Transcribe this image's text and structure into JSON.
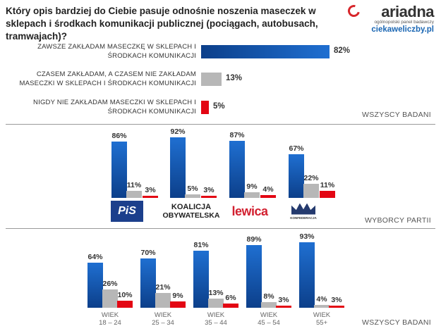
{
  "title": "Który opis bardziej do Ciebie pasuje odnośnie noszenia maseczek w sklepach i środkach komunikacji publicznej (pociągach, autobusach, tramwajach)?",
  "brand": {
    "name": "ariadna",
    "tagline": "ogólnopolski panel badawczy",
    "site": "ciekaweliczby.pl"
  },
  "colors": {
    "always": "#1659b5",
    "sometimes": "#b7b7b7",
    "never": "#e30613",
    "label": "#333333"
  },
  "chart_data": [
    {
      "type": "bar",
      "orientation": "horizontal",
      "group_label": "WSZYSCY BADANI",
      "categories": [
        [
          "ZAWSZE ZAKŁADAM MASECZKĘ W SKLEPACH I",
          "ŚRODKACH KOMUNIKACJI"
        ],
        [
          "CZASEM ZAKŁADAM, A CZASEM NIE ZAKŁADAM",
          "MASECZKI W SKLEPACH I ŚRODKACH KOMUNIKACJI"
        ],
        [
          "NIGDY NIE ZAKŁADAM MASECZKI W SKLEPACH I",
          "ŚRODKACH KOMUNIKACJI"
        ]
      ],
      "values": [
        82,
        13,
        5
      ],
      "labels": [
        "82%",
        "13%",
        "5%"
      ]
    },
    {
      "type": "bar",
      "orientation": "vertical",
      "group_label": "WYBORCY PARTII",
      "categories": [
        "PiS",
        "Koalicja Obywatelska",
        "Lewica",
        "Konfederacja"
      ],
      "logos": {
        "pis": "PiS",
        "ko": [
          "KOALICJA",
          "OBYWATELSKA"
        ],
        "lewica": "lewica",
        "konfederacja": "KONFEDERACJA"
      },
      "series": [
        {
          "values": [
            86,
            92,
            87,
            67
          ],
          "labels": [
            "86%",
            "92%",
            "87%",
            "67%"
          ]
        },
        {
          "values": [
            11,
            5,
            9,
            22
          ],
          "labels": [
            "11%",
            "5%",
            "9%",
            "22%"
          ]
        },
        {
          "values": [
            3,
            3,
            4,
            11
          ],
          "labels": [
            "3%",
            "3%",
            "4%",
            "11%"
          ]
        }
      ]
    },
    {
      "type": "bar",
      "orientation": "vertical",
      "group_label": "WSZYSCY BADANI",
      "categories": [
        [
          "WIEK",
          "18 – 24"
        ],
        [
          "WIEK",
          "25 – 34"
        ],
        [
          "WIEK",
          "35 – 44"
        ],
        [
          "WIEK",
          "45 – 54"
        ],
        [
          "WIEK",
          "55+"
        ]
      ],
      "series": [
        {
          "values": [
            64,
            70,
            81,
            89,
            93
          ],
          "labels": [
            "64%",
            "70%",
            "81%",
            "89%",
            "93%"
          ]
        },
        {
          "values": [
            26,
            21,
            13,
            8,
            4
          ],
          "labels": [
            "26%",
            "21%",
            "13%",
            "8%",
            "4%"
          ]
        },
        {
          "values": [
            10,
            9,
            6,
            3,
            3
          ],
          "labels": [
            "10%",
            "9%",
            "6%",
            "3%",
            "3%"
          ]
        }
      ]
    }
  ]
}
